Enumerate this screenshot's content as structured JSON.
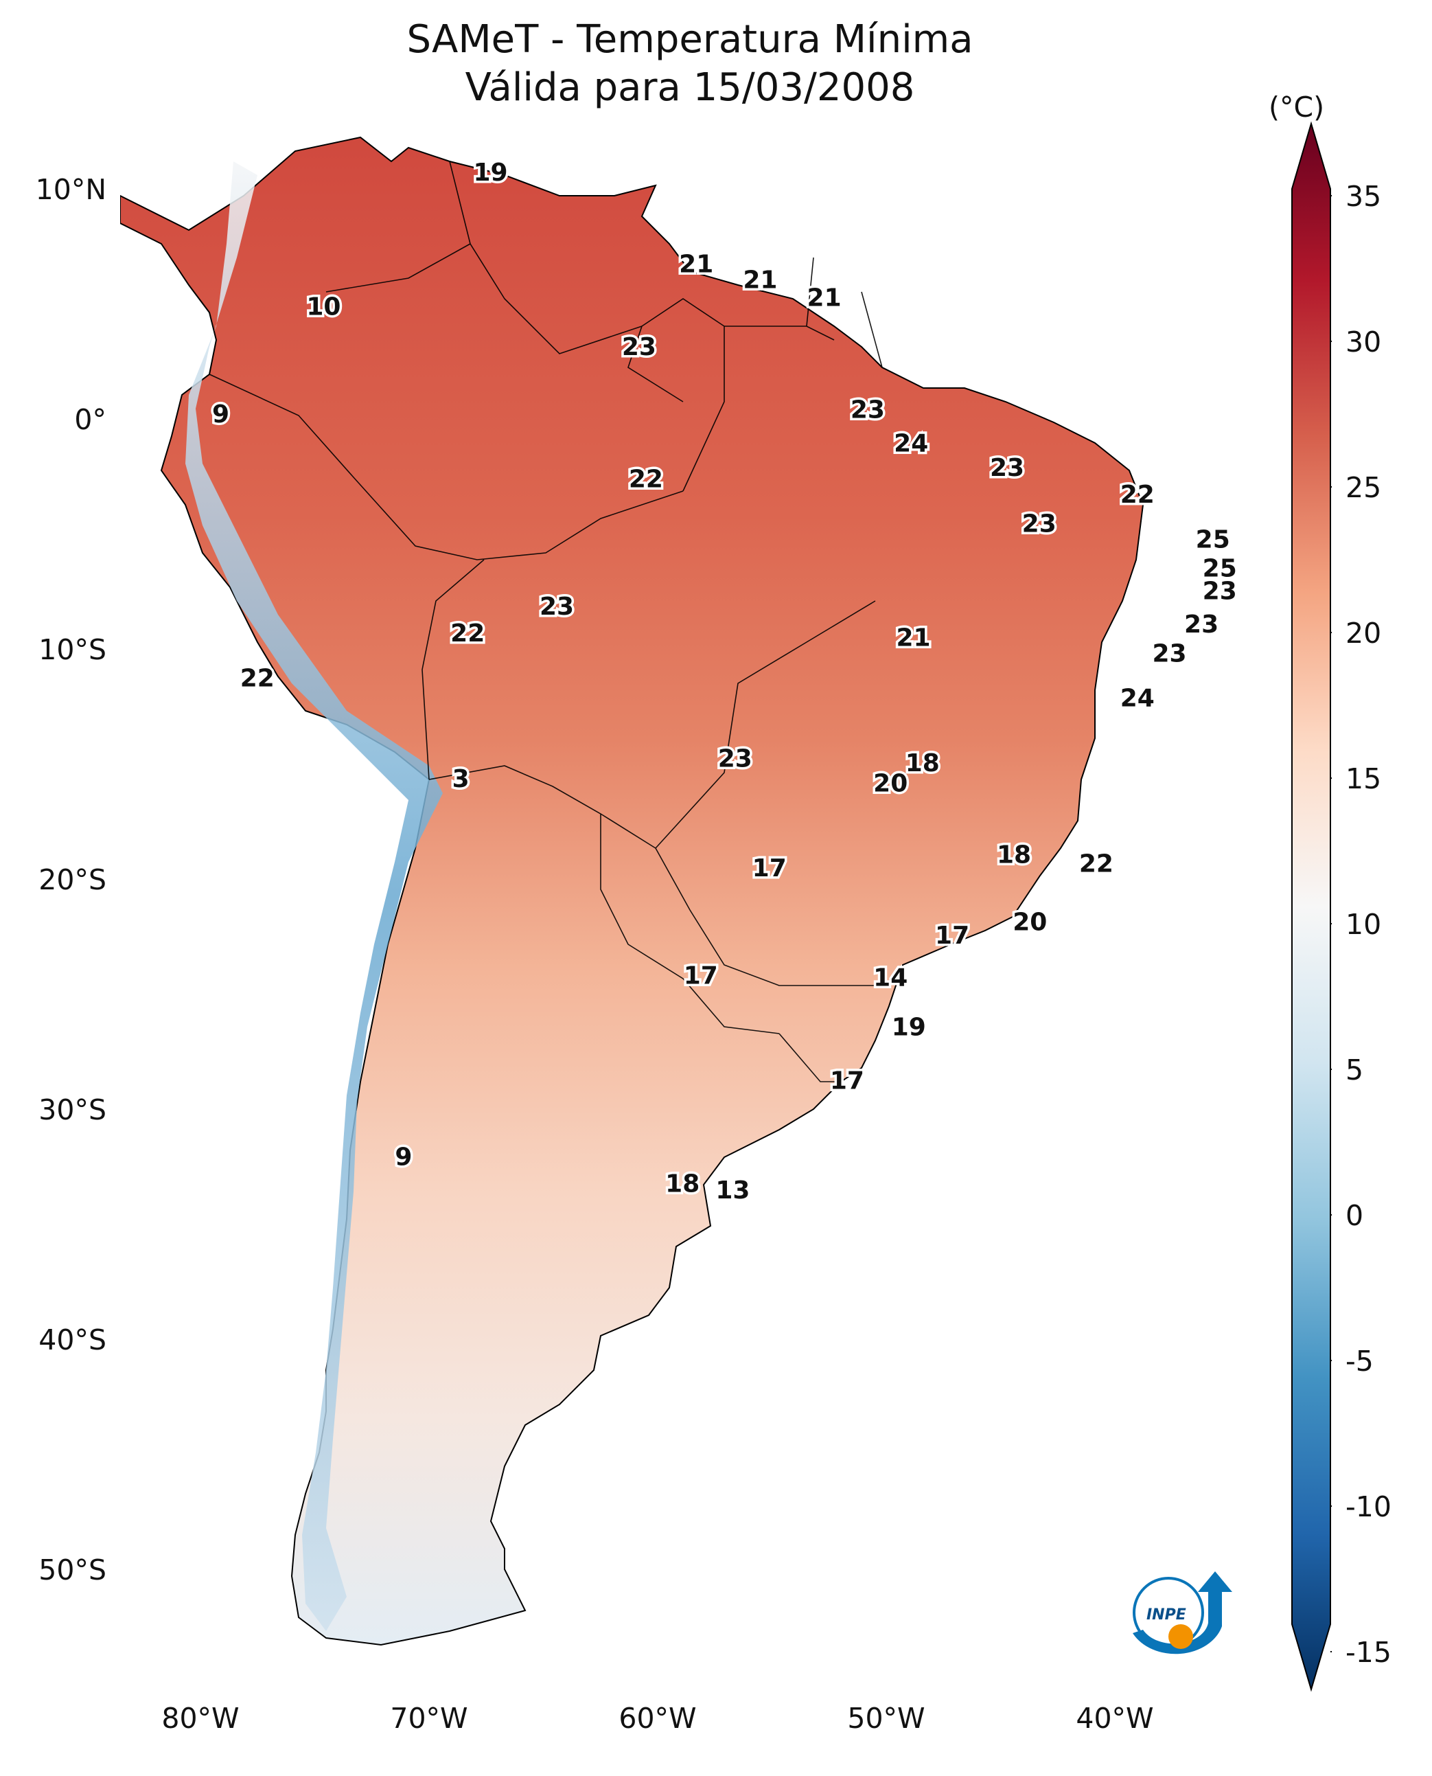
{
  "title": {
    "line1": "SAMeT - Temperatura Mínima",
    "line2": "Válida para 15/03/2008"
  },
  "axes": {
    "lat_ticks": [
      "10°N",
      "0°",
      "10°S",
      "20°S",
      "30°S",
      "40°S",
      "50°S"
    ],
    "lon_ticks": [
      "80°W",
      "70°W",
      "60°W",
      "50°W",
      "40°W"
    ],
    "lon_range": [
      -83,
      -33
    ],
    "lat_range": [
      -57,
      13
    ]
  },
  "colorbar": {
    "unit": "(°C)",
    "ticks": [
      "35",
      "30",
      "25",
      "20",
      "15",
      "10",
      "5",
      "0",
      "-5",
      "-10",
      "-15"
    ],
    "colors": [
      "#053061",
      "#2166ac",
      "#4393c3",
      "#92c5de",
      "#d1e5f0",
      "#f7f7f7",
      "#fddbc7",
      "#f4a582",
      "#d6604d",
      "#b2182b",
      "#67001f"
    ]
  },
  "stations": [
    {
      "value": "19",
      "lon": -66.8,
      "lat": 10.6
    },
    {
      "value": "21",
      "lon": -57.8,
      "lat": 6.5
    },
    {
      "value": "21",
      "lon": -55.0,
      "lat": 5.8
    },
    {
      "value": "21",
      "lon": -52.2,
      "lat": 5.0
    },
    {
      "value": "10",
      "lon": -74.1,
      "lat": 4.6
    },
    {
      "value": "23",
      "lon": -60.3,
      "lat": 2.8
    },
    {
      "value": "9",
      "lon": -78.6,
      "lat": -0.2
    },
    {
      "value": "23",
      "lon": -50.3,
      "lat": 0.0
    },
    {
      "value": "24",
      "lon": -48.4,
      "lat": -1.5
    },
    {
      "value": "22",
      "lon": -60.0,
      "lat": -3.1
    },
    {
      "value": "23",
      "lon": -44.2,
      "lat": -2.6
    },
    {
      "value": "22",
      "lon": -38.5,
      "lat": -3.8
    },
    {
      "value": "23",
      "lon": -42.8,
      "lat": -5.1
    },
    {
      "value": "25",
      "lon": -35.2,
      "lat": -5.8
    },
    {
      "value": "25",
      "lon": -34.9,
      "lat": -7.1
    },
    {
      "value": "23",
      "lon": -34.9,
      "lat": -8.1
    },
    {
      "value": "23",
      "lon": -63.9,
      "lat": -8.8
    },
    {
      "value": "22",
      "lon": -67.8,
      "lat": -10.0
    },
    {
      "value": "21",
      "lon": -48.3,
      "lat": -10.2
    },
    {
      "value": "23",
      "lon": -35.7,
      "lat": -9.6
    },
    {
      "value": "23",
      "lon": -37.1,
      "lat": -10.9
    },
    {
      "value": "22",
      "lon": -77.0,
      "lat": -12.0
    },
    {
      "value": "24",
      "lon": -38.5,
      "lat": -12.9
    },
    {
      "value": "23",
      "lon": -56.1,
      "lat": -15.6
    },
    {
      "value": "3",
      "lon": -68.1,
      "lat": -16.5
    },
    {
      "value": "18",
      "lon": -47.9,
      "lat": -15.8
    },
    {
      "value": "20",
      "lon": -49.3,
      "lat": -16.7
    },
    {
      "value": "18",
      "lon": -43.9,
      "lat": -19.9
    },
    {
      "value": "22",
      "lon": -40.3,
      "lat": -20.3
    },
    {
      "value": "17",
      "lon": -54.6,
      "lat": -20.5
    },
    {
      "value": "20",
      "lon": -43.2,
      "lat": -22.9
    },
    {
      "value": "17",
      "lon": -46.6,
      "lat": -23.5
    },
    {
      "value": "17",
      "lon": -57.6,
      "lat": -25.3
    },
    {
      "value": "14",
      "lon": -49.3,
      "lat": -25.4
    },
    {
      "value": "19",
      "lon": -48.5,
      "lat": -27.6
    },
    {
      "value": "17",
      "lon": -51.2,
      "lat": -30.0
    },
    {
      "value": "9",
      "lon": -70.6,
      "lat": -33.4
    },
    {
      "value": "18",
      "lon": -58.4,
      "lat": -34.6
    },
    {
      "value": "13",
      "lon": -56.2,
      "lat": -34.9
    }
  ]
}
